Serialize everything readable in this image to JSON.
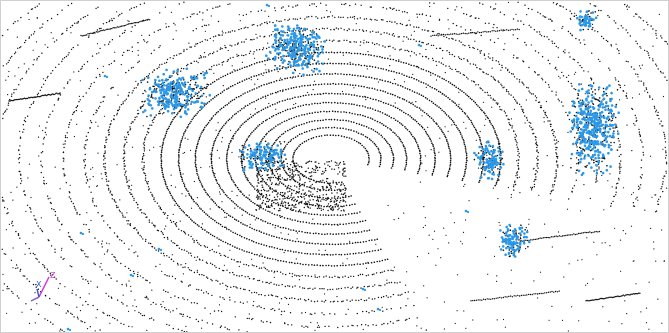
{
  "scene": {
    "background_color": "#ffffff",
    "ground_point_color": "#111111",
    "object_point_color": "#2b98e8",
    "axis_triad": {
      "labels": {
        "x": "X",
        "z": "Z"
      },
      "colors": {
        "x": "#3a4fd8",
        "y": "#7a5ad0",
        "z": "#d23bd2"
      }
    }
  }
}
